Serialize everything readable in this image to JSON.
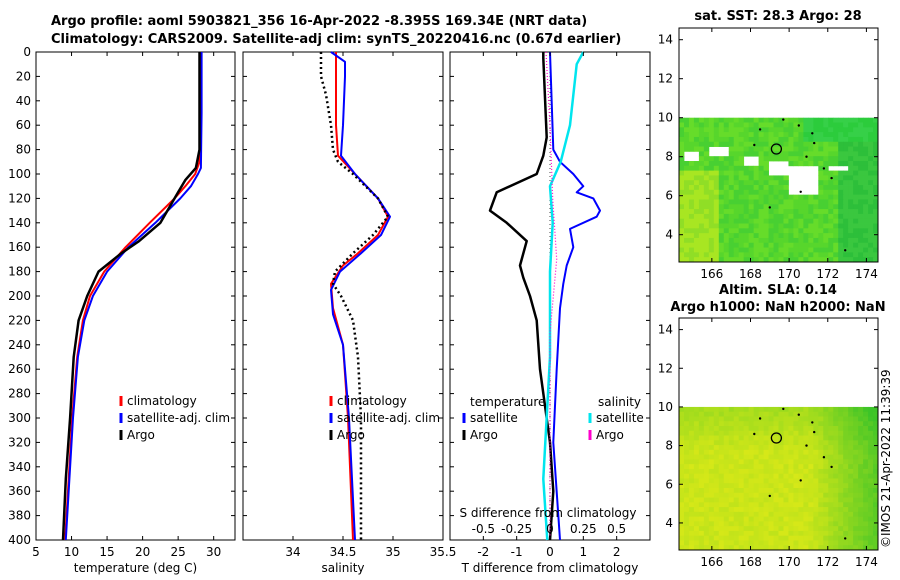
{
  "titles": {
    "line1": "Argo profile: aoml 5903821_356 16-Apr-2022 -8.395S 169.34E (NRT data)",
    "line2": "Climatology: CARS2009. Satellite-adj clim: synTS_20220416.nc (0.67d earlier)",
    "sst": "sat. SST: 28.3 Argo: 28",
    "sla": "Altim. SLA: 0.14",
    "h": "Argo h1000: NaN h2000: NaN",
    "timestamp": "©IMOS 21-Apr-2022 11:39:39"
  },
  "colors": {
    "climatology": "#ff0000",
    "satellite": "#0000ff",
    "argo": "#000000",
    "sal_sat": "#00e5ee",
    "sal_argo": "#ff00cc"
  },
  "chart_data": [
    {
      "id": "temp",
      "type": "line",
      "xlabel": "temperature (deg C)",
      "ylabel": "",
      "xlim": [
        5,
        33
      ],
      "ylim": [
        0,
        400
      ],
      "xticks": [
        5,
        10,
        15,
        20,
        25,
        30
      ],
      "yticks": [
        0,
        20,
        40,
        60,
        80,
        100,
        120,
        140,
        160,
        180,
        200,
        220,
        240,
        260,
        280,
        300,
        320,
        340,
        360,
        380,
        400
      ],
      "legend": [
        "climatology",
        "satellite-adj. clim",
        "Argo"
      ],
      "series": [
        {
          "name": "climatology",
          "color": "#ff0000",
          "width": 2,
          "depth": [
            0,
            50,
            90,
            100,
            110,
            120,
            140,
            160,
            180,
            200,
            220,
            250,
            300,
            350,
            400
          ],
          "value": [
            28.2,
            28.2,
            28.0,
            27.4,
            26.0,
            24.5,
            21.0,
            17.6,
            14.6,
            12.6,
            11.6,
            10.8,
            10.1,
            9.6,
            9.1
          ]
        },
        {
          "name": "satellite-adj. clim",
          "color": "#0000ff",
          "width": 2,
          "depth": [
            0,
            50,
            95,
            100,
            110,
            120,
            140,
            160,
            180,
            200,
            220,
            250,
            300,
            350,
            400
          ],
          "value": [
            28.3,
            28.3,
            28.2,
            27.8,
            26.8,
            25.3,
            21.8,
            18.0,
            15.0,
            13.0,
            11.8,
            10.9,
            10.2,
            9.7,
            9.2
          ]
        },
        {
          "name": "Argo",
          "color": "#000000",
          "width": 2.5,
          "depth": [
            0,
            80,
            95,
            105,
            115,
            125,
            140,
            155,
            165,
            180,
            200,
            220,
            250,
            300,
            350,
            400
          ],
          "value": [
            28.0,
            28.0,
            27.5,
            26.0,
            25.0,
            24.0,
            22.5,
            19.5,
            17.0,
            13.8,
            12.2,
            11.0,
            10.3,
            9.8,
            9.2,
            8.8
          ]
        }
      ]
    },
    {
      "id": "sal",
      "type": "line",
      "xlabel": "salinity",
      "ylabel": "",
      "xlim": [
        33.5,
        35.5
      ],
      "ylim": [
        0,
        400
      ],
      "xticks": [
        34,
        34.5,
        35,
        35.5
      ],
      "legend": [
        "climatology",
        "satellite-adj. clim",
        "Argo"
      ],
      "series": [
        {
          "name": "climatology",
          "color": "#ff0000",
          "width": 2,
          "depth": [
            0,
            20,
            60,
            85,
            100,
            120,
            135,
            150,
            165,
            175,
            190,
            210,
            240,
            300,
            400
          ],
          "value": [
            34.43,
            34.43,
            34.43,
            34.45,
            34.62,
            34.85,
            34.95,
            34.85,
            34.65,
            34.5,
            34.38,
            34.4,
            34.5,
            34.55,
            34.6
          ]
        },
        {
          "name": "satellite-adj. clim",
          "color": "#0000ff",
          "width": 2,
          "depth": [
            0,
            8,
            20,
            60,
            85,
            100,
            120,
            135,
            150,
            165,
            180,
            195,
            215,
            240,
            300,
            400
          ],
          "value": [
            34.38,
            34.52,
            34.52,
            34.5,
            34.48,
            34.62,
            34.85,
            34.97,
            34.88,
            34.68,
            34.47,
            34.38,
            34.4,
            34.5,
            34.56,
            34.62
          ]
        },
        {
          "name": "Argo",
          "color": "#000000",
          "width": 2.5,
          "dash": "2,3",
          "depth": [
            0,
            20,
            35,
            45,
            60,
            80,
            90,
            100,
            120,
            135,
            150,
            165,
            180,
            190,
            200,
            220,
            250,
            300,
            350,
            400
          ],
          "value": [
            34.28,
            34.28,
            34.33,
            34.35,
            34.38,
            34.4,
            34.45,
            34.6,
            34.85,
            34.95,
            34.8,
            34.6,
            34.42,
            34.4,
            34.48,
            34.6,
            34.65,
            34.68,
            34.68,
            34.68
          ]
        }
      ]
    },
    {
      "id": "diff",
      "type": "line",
      "xlabel": "T difference from climatology",
      "xlabel_top": "S difference from climatology",
      "xlim": [
        -3,
        3
      ],
      "ylim": [
        0,
        400
      ],
      "xticks": [
        -2,
        -1,
        0,
        1,
        2
      ],
      "xticks_top": [
        "-0.5",
        "-0.25",
        "0",
        "0.25",
        "0.5"
      ],
      "legend_groups": [
        {
          "title": "temperature",
          "items": [
            "satellite",
            "Argo"
          ]
        },
        {
          "title": "salinity",
          "items": [
            "satellite",
            "Argo"
          ]
        }
      ],
      "series": [
        {
          "name": "temperature satellite",
          "color": "#0000ff",
          "width": 2,
          "depth": [
            0,
            80,
            90,
            100,
            110,
            115,
            120,
            130,
            135,
            145,
            160,
            175,
            190,
            210,
            260,
            320,
            400
          ],
          "value": [
            0.0,
            0.1,
            0.3,
            0.7,
            1.0,
            0.8,
            1.3,
            1.5,
            1.4,
            0.6,
            0.7,
            0.5,
            0.4,
            0.3,
            0.2,
            0.1,
            0.3
          ]
        },
        {
          "name": "temperature Argo",
          "color": "#000000",
          "width": 2.5,
          "depth": [
            0,
            5,
            70,
            85,
            100,
            115,
            130,
            140,
            155,
            175,
            185,
            200,
            220,
            260,
            320,
            360,
            400
          ],
          "value": [
            -0.2,
            -0.2,
            -0.1,
            -0.2,
            -0.4,
            -1.6,
            -1.8,
            -1.3,
            -0.7,
            -0.9,
            -0.8,
            -0.6,
            -0.4,
            -0.3,
            0.0,
            0.1,
            0.0
          ]
        },
        {
          "name": "salinity satellite",
          "color": "#00e5ee",
          "width": 2.5,
          "depth": [
            0,
            10,
            60,
            90,
            110,
            140,
            180,
            250,
            350,
            400
          ],
          "value": [
            0.25,
            0.2,
            0.15,
            0.08,
            0.0,
            0.02,
            0.0,
            0.0,
            -0.05,
            -0.02
          ]
        },
        {
          "name": "salinity Argo",
          "color": "#ff00cc",
          "width": 1.2,
          "dash": "1,2",
          "depth": [
            0,
            60,
            120,
            170,
            230,
            300,
            400
          ],
          "value": [
            -0.03,
            0.0,
            0.02,
            0.05,
            0.0,
            0.0,
            0.0
          ]
        }
      ]
    },
    {
      "id": "sst_map",
      "type": "heatmap",
      "title": "sat. SST: 28.3 Argo: 28",
      "xticks": [
        166,
        168,
        170,
        172,
        174
      ],
      "yticks": [
        4,
        6,
        8,
        10,
        12,
        14
      ],
      "xlim": [
        164.3,
        174.6
      ],
      "ylim": [
        2.6,
        14.6
      ],
      "data_ymax": 10,
      "marker": {
        "lon": 169.34,
        "lat": 8.395
      }
    },
    {
      "id": "sla_map",
      "type": "heatmap",
      "title": "Altim. SLA: 0.14",
      "xticks": [
        166,
        168,
        170,
        172,
        174
      ],
      "yticks": [
        4,
        6,
        8,
        10,
        12,
        14
      ],
      "xlim": [
        164.3,
        174.6
      ],
      "ylim": [
        2.6,
        14.6
      ],
      "data_ymax": 10,
      "marker": {
        "lon": 169.34,
        "lat": 8.395
      }
    }
  ]
}
